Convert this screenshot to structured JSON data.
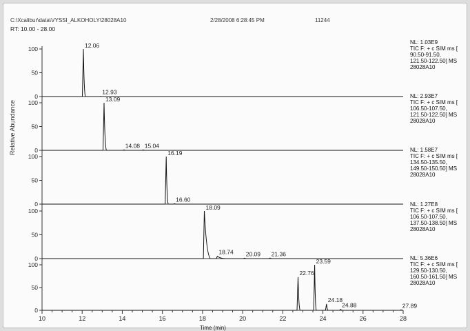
{
  "header": {
    "file": "C:\\Xcalibur\\data\\VYSSI_ALKOHOLY\\28028A10",
    "datetime": "2/28/2008 6:28:45 PM",
    "number": "11244"
  },
  "rt_range": "RT: 10.00 - 28.00",
  "chart_data": {
    "type": "line",
    "xlabel": "Time (min)",
    "ylabel": "Relative Abundance",
    "xlim": [
      10,
      28
    ],
    "xticks": [
      10,
      12,
      14,
      16,
      18,
      20,
      22,
      24,
      26,
      28
    ],
    "ylim": [
      0,
      100
    ],
    "yticks": [
      0,
      50,
      100
    ],
    "panels": [
      {
        "nl": "NL: 1.03E9",
        "info": [
          "TIC F: + c SIM ms [",
          "90.50-91.50,",
          "121.50-122.50]  MS",
          "28028A10"
        ],
        "peaks": [
          {
            "rt": 12.06,
            "height": 100,
            "label": "12.06",
            "tail": 0.1
          },
          {
            "rt": 12.93,
            "height": 0.5,
            "label": "12.93",
            "tail": 0.1
          }
        ]
      },
      {
        "nl": "NL: 2.93E7",
        "info": [
          "TIC F: + c SIM ms [",
          "106.50-107.50,",
          "121.50-122.50]  MS",
          "28028A10"
        ],
        "peaks": [
          {
            "rt": 13.09,
            "height": 100,
            "label": "13.09",
            "tail": 0.12
          },
          {
            "rt": 14.08,
            "height": 1,
            "label": "14.08",
            "tail": 0.1
          },
          {
            "rt": 15.04,
            "height": 1,
            "label": "15.04",
            "tail": 0.1
          }
        ]
      },
      {
        "nl": "NL: 1.58E7",
        "info": [
          "TIC F: + c SIM ms [",
          "134.50-135.50,",
          "149.50-150.50]  MS",
          "28028A10"
        ],
        "peaks": [
          {
            "rt": 16.19,
            "height": 100,
            "label": "16.19",
            "tail": 0.1
          },
          {
            "rt": 16.6,
            "height": 1,
            "label": "16.60",
            "tail": 0.1
          }
        ]
      },
      {
        "nl": "NL: 1.27E8",
        "info": [
          "TIC F: + c SIM ms [",
          "106.50-107.50,",
          "137.50-138.50]  MS",
          "28028A10"
        ],
        "peaks": [
          {
            "rt": 18.09,
            "height": 100,
            "label": "18.09",
            "tail": 0.3
          },
          {
            "rt": 18.74,
            "height": 5,
            "label": "18.74",
            "tail": 0.4
          },
          {
            "rt": 20.09,
            "height": 1,
            "label": "20.09",
            "tail": 0.1
          },
          {
            "rt": 21.36,
            "height": 1,
            "label": "21.36",
            "tail": 0.1
          }
        ]
      },
      {
        "nl": "NL: 5.36E6",
        "info": [
          "TIC F: + c SIM ms [",
          "129.50-130.50,",
          "160.50-161.50]  MS",
          "28028A10"
        ],
        "peaks": [
          {
            "rt": 22.76,
            "height": 73,
            "label": "22.76",
            "tail": 0.1
          },
          {
            "rt": 23.59,
            "height": 100,
            "label": "23.59",
            "tail": 0.08
          },
          {
            "rt": 24.18,
            "height": 14,
            "label": "24.18",
            "tail": 0.08
          },
          {
            "rt": 24.88,
            "height": 2,
            "label": "24.88",
            "tail": 0.1
          },
          {
            "rt": 27.89,
            "height": 1,
            "label": "27.89",
            "tail": 0.1
          }
        ]
      }
    ]
  }
}
